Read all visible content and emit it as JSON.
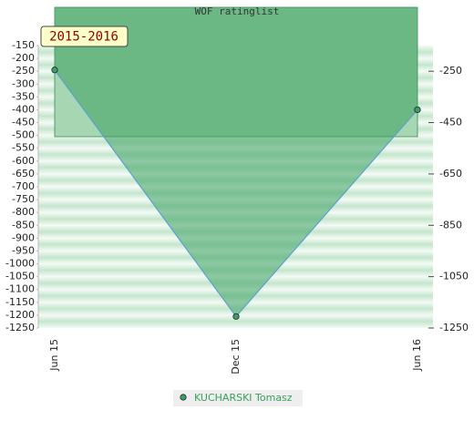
{
  "chart_data": {
    "type": "area",
    "title": "WOF ratinglist",
    "annotation": "2015-2016",
    "categories": [
      "Jun 15",
      "Dec 15",
      "Jun 16"
    ],
    "series": [
      {
        "name": "KUCHARSKI Tomasz",
        "color": "#3aa060",
        "values": [
          -245,
          -1205,
          -400
        ]
      }
    ],
    "ylim": [
      -1250,
      -150
    ],
    "yticks": [
      -150,
      -200,
      -250,
      -300,
      -350,
      -400,
      -450,
      -500,
      -550,
      -600,
      -650,
      -700,
      -750,
      -800,
      -850,
      -900,
      -950,
      -1000,
      -1050,
      -1100,
      -1150,
      -1200,
      -1250
    ],
    "y2lim": [
      -1250,
      -150
    ],
    "y2ticks": [
      -250,
      -450,
      -650,
      -850,
      -1050,
      -1250
    ],
    "legend": "bottom"
  }
}
